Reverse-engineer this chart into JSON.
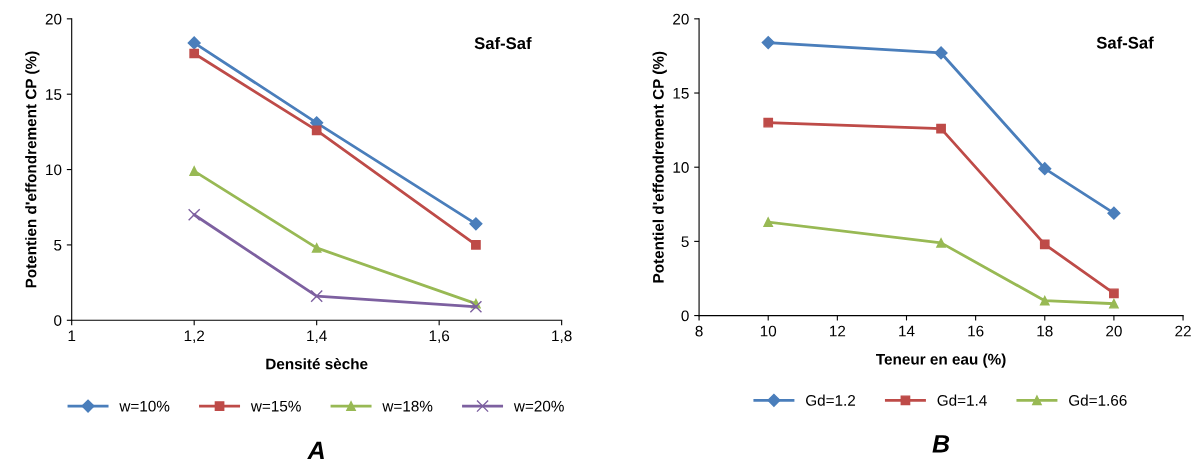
{
  "chart_data": [
    {
      "type": "line",
      "xlabel": "Densité sèche",
      "ylabel": "Potentien d'effondrement CP (%)",
      "annotations": [
        "Saf-Saf",
        "A"
      ],
      "xlim": [
        1,
        1.8
      ],
      "xticks": [
        {
          "value": 1,
          "label": "1"
        },
        {
          "value": 1.2,
          "label": "1,2"
        },
        {
          "value": 1.4,
          "label": "1,4"
        },
        {
          "value": 1.6,
          "label": "1,6"
        },
        {
          "value": 1.8,
          "label": "1,8"
        }
      ],
      "ylim": [
        0,
        20
      ],
      "yticks": [
        0,
        5,
        10,
        15,
        20
      ],
      "grid": false,
      "legend": "bottom",
      "line_style": "solid",
      "series": [
        {
          "name": "w=10%",
          "color": "#4a7ebb",
          "marker": "diamond",
          "x": [
            1.2,
            1.4,
            1.66
          ],
          "values": [
            18.4,
            13.1,
            6.4
          ]
        },
        {
          "name": "w=15%",
          "color": "#be4b48",
          "marker": "square",
          "x": [
            1.2,
            1.4,
            1.66
          ],
          "values": [
            17.7,
            12.6,
            5.0
          ]
        },
        {
          "name": "w=18%",
          "color": "#98b954",
          "marker": "triangle",
          "x": [
            1.2,
            1.4,
            1.66
          ],
          "values": [
            9.9,
            4.8,
            1.1
          ]
        },
        {
          "name": "w=20%",
          "color": "#7d60a0",
          "marker": "cross",
          "x": [
            1.2,
            1.4,
            1.66
          ],
          "values": [
            7.0,
            1.6,
            0.9
          ]
        }
      ]
    },
    {
      "type": "line",
      "xlabel": "Teneur en eau (%)",
      "ylabel": "Potentiel d'effondrement CP (%)",
      "annotations": [
        "Saf-Saf",
        "B"
      ],
      "xlim": [
        8,
        22
      ],
      "xticks": [
        8,
        10,
        12,
        14,
        16,
        18,
        20,
        22
      ],
      "ylim": [
        0,
        20
      ],
      "yticks": [
        0,
        5,
        10,
        15,
        20
      ],
      "grid": false,
      "legend": "bottom",
      "line_style": "solid",
      "series": [
        {
          "name": "Gd=1.2",
          "color": "#4a7ebb",
          "marker": "diamond",
          "x": [
            10,
            15,
            18,
            20
          ],
          "values": [
            18.4,
            17.7,
            9.9,
            6.9
          ]
        },
        {
          "name": "Gd=1.4",
          "color": "#be4b48",
          "marker": "square",
          "x": [
            10,
            15,
            18,
            20
          ],
          "values": [
            13.0,
            12.6,
            4.8,
            1.5
          ]
        },
        {
          "name": "Gd=1.66",
          "color": "#98b954",
          "marker": "triangle",
          "x": [
            10,
            15,
            18,
            20
          ],
          "values": [
            6.3,
            4.9,
            1.0,
            0.8
          ]
        }
      ]
    }
  ]
}
